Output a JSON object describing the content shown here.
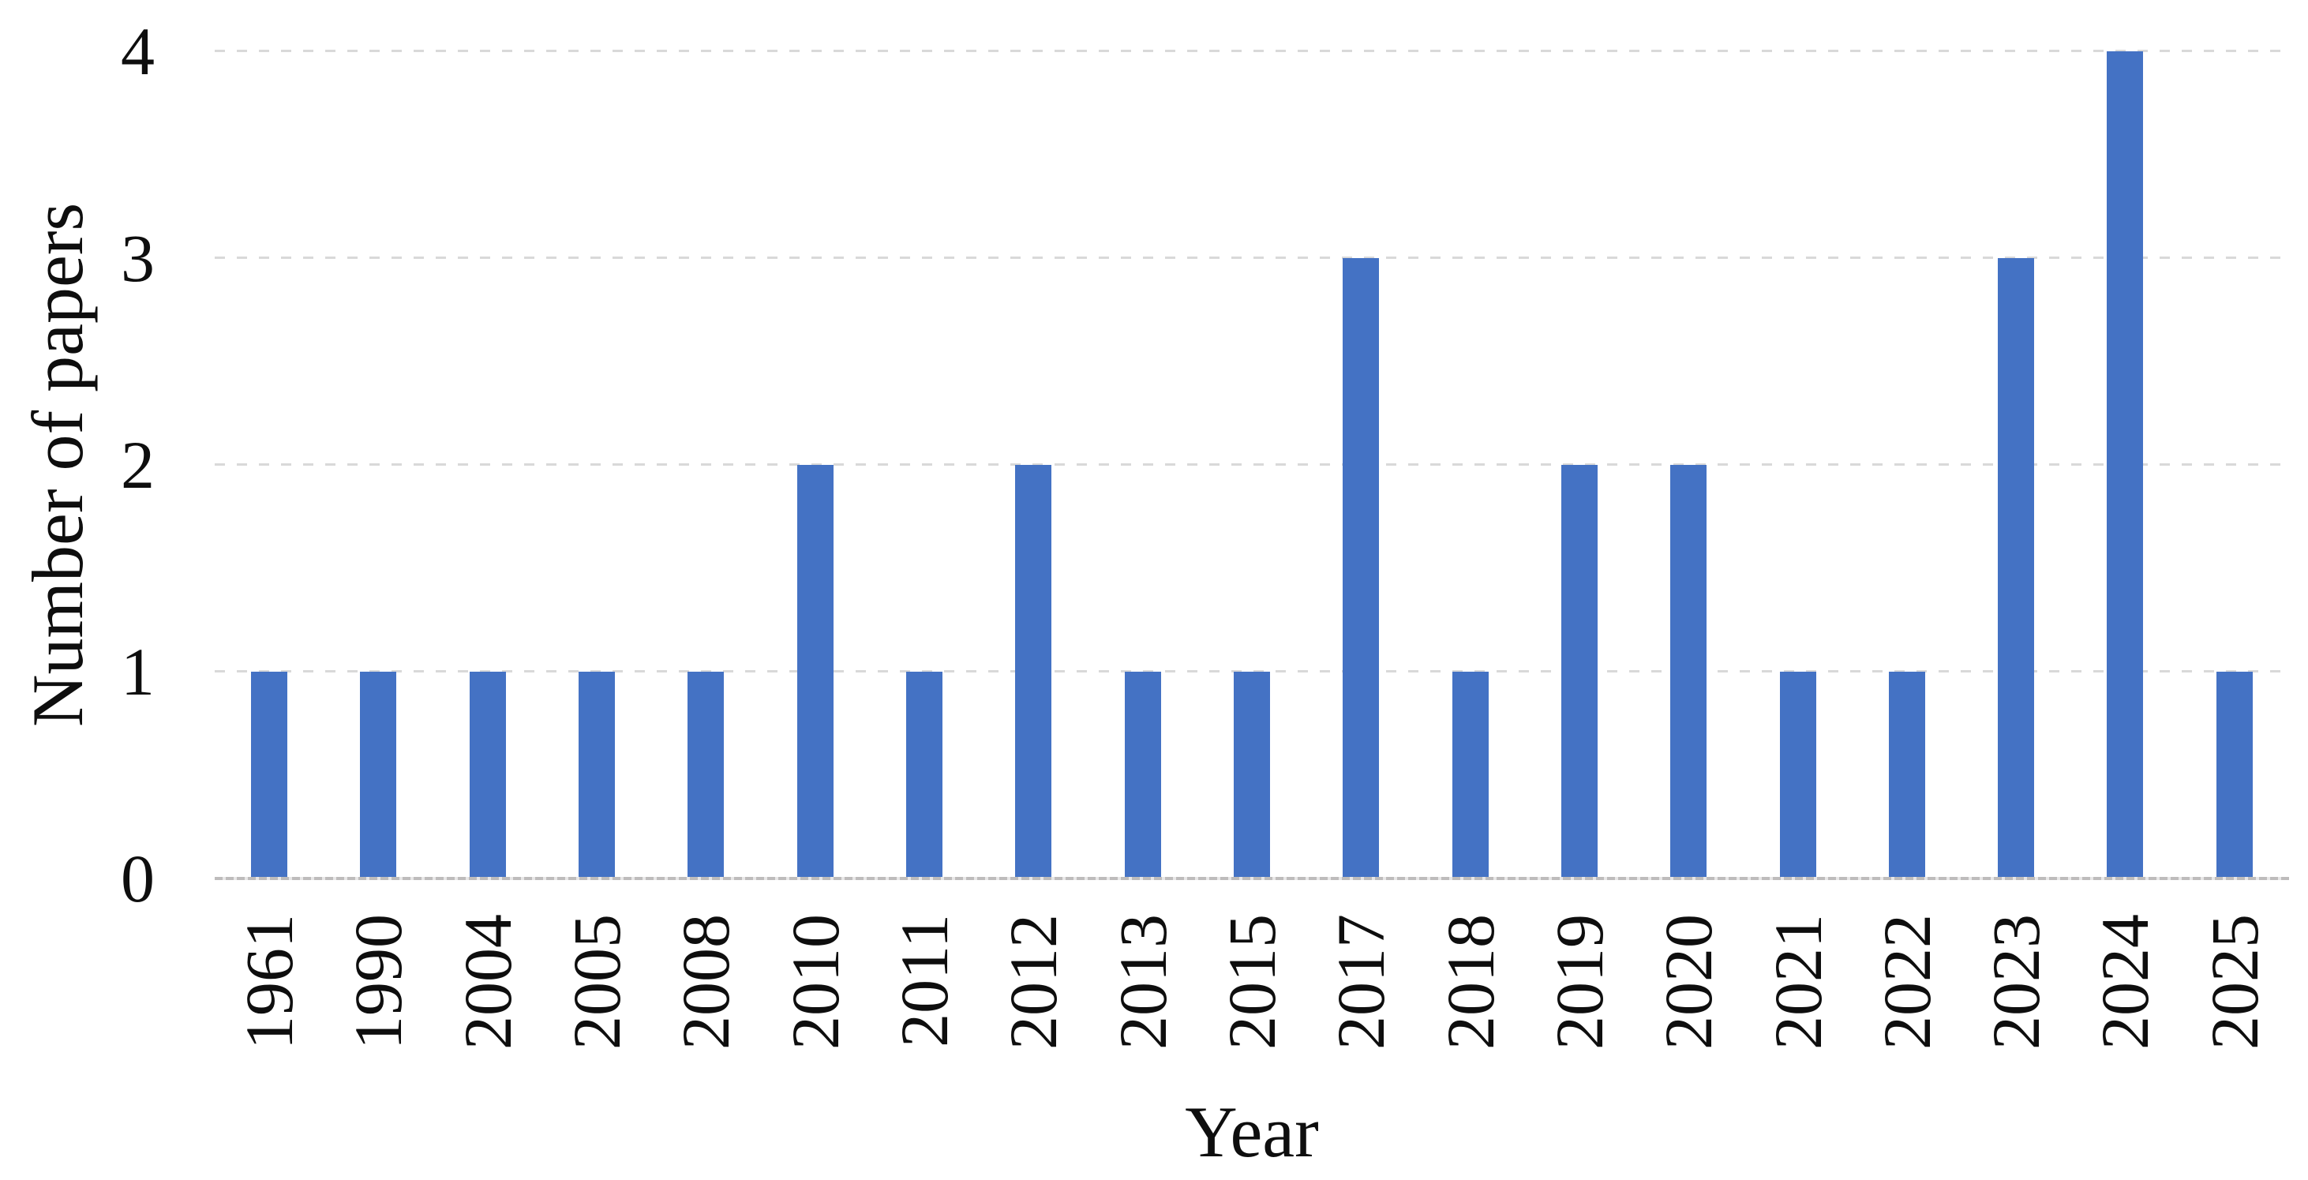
{
  "chart_data": {
    "type": "bar",
    "title": "",
    "xlabel": "Year",
    "ylabel": "Number of papers",
    "categories": [
      "1961",
      "1990",
      "2004",
      "2005",
      "2008",
      "2010",
      "2011",
      "2012",
      "2013",
      "2015",
      "2017",
      "2018",
      "2019",
      "2020",
      "2021",
      "2022",
      "2023",
      "2024",
      "2025"
    ],
    "values": [
      1,
      1,
      1,
      1,
      1,
      2,
      1,
      2,
      1,
      1,
      3,
      1,
      2,
      2,
      1,
      1,
      3,
      4,
      1
    ],
    "ylim": [
      0,
      4
    ],
    "yticks": [
      0,
      1,
      2,
      3,
      4
    ],
    "grid": "horizontal-dashed",
    "legend_position": "none",
    "colors": {
      "bar": "#4472C4",
      "gridline": "#D9D9D9",
      "axis_line": "#BEBCBC",
      "text": "#0E0E0E",
      "background": "#FFFFFF"
    }
  }
}
